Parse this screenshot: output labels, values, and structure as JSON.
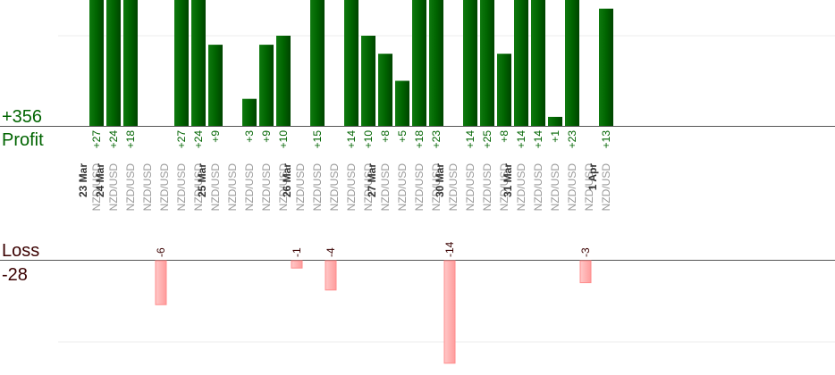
{
  "summary": {
    "profit_total": "+356",
    "profit_label": "Profit",
    "loss_label": "Loss",
    "loss_total": "-28"
  },
  "chart_data": {
    "type": "bar",
    "title": "",
    "xlabel": "",
    "ylabel": "",
    "grid": true,
    "profit_color": "#006400",
    "loss_color": "#ffb3b3",
    "date_groups": [
      {
        "date": "23 Mar",
        "trades": [
          {
            "pair": "NZD/USD",
            "value": 27
          }
        ]
      },
      {
        "date": "24 Mar",
        "trades": [
          {
            "pair": "NZD/USD",
            "value": 24
          },
          {
            "pair": "NZD/USD",
            "value": 18
          },
          {
            "pair": "NZD/USD",
            "value": null
          },
          {
            "pair": "NZD/USD",
            "value": -6
          },
          {
            "pair": "NZD/USD",
            "value": 27
          },
          {
            "pair": "NZD/USD",
            "value": 24
          }
        ]
      },
      {
        "date": "25 Mar",
        "trades": [
          {
            "pair": "NZD/USD",
            "value": 9
          },
          {
            "pair": "NZD/USD",
            "value": null
          },
          {
            "pair": "NZD/USD",
            "value": 3
          },
          {
            "pair": "NZD/USD",
            "value": 9
          },
          {
            "pair": "NZD/USD",
            "value": 10
          }
        ]
      },
      {
        "date": "26 Mar",
        "trades": [
          {
            "pair": "NZD/USD",
            "value": -1
          },
          {
            "pair": "NZD/USD",
            "value": 15
          },
          {
            "pair": "NZD/USD",
            "value": -4
          },
          {
            "pair": "NZD/USD",
            "value": 14
          },
          {
            "pair": "NZD/USD",
            "value": 10
          }
        ]
      },
      {
        "date": "27 Mar",
        "trades": [
          {
            "pair": "NZD/USD",
            "value": 8
          },
          {
            "pair": "NZD/USD",
            "value": 5
          },
          {
            "pair": "NZD/USD",
            "value": 18
          },
          {
            "pair": "NZD/USD",
            "value": 23
          }
        ]
      },
      {
        "date": "30 Mar",
        "trades": [
          {
            "pair": "NZD/USD",
            "value": -14
          },
          {
            "pair": "NZD/USD",
            "value": 14
          },
          {
            "pair": "NZD/USD",
            "value": 25
          },
          {
            "pair": "NZD/USD",
            "value": 8
          }
        ]
      },
      {
        "date": "31 Mar",
        "trades": [
          {
            "pair": "NZD/USD",
            "value": 14
          },
          {
            "pair": "NZD/USD",
            "value": 14
          },
          {
            "pair": "NZD/USD",
            "value": 1
          },
          {
            "pair": "NZD/USD",
            "value": 23
          },
          {
            "pair": "NZD/USD",
            "value": -3
          }
        ]
      },
      {
        "date": "1 Apr",
        "trades": [
          {
            "pair": "NZD/USD",
            "value": 13
          }
        ]
      }
    ]
  }
}
